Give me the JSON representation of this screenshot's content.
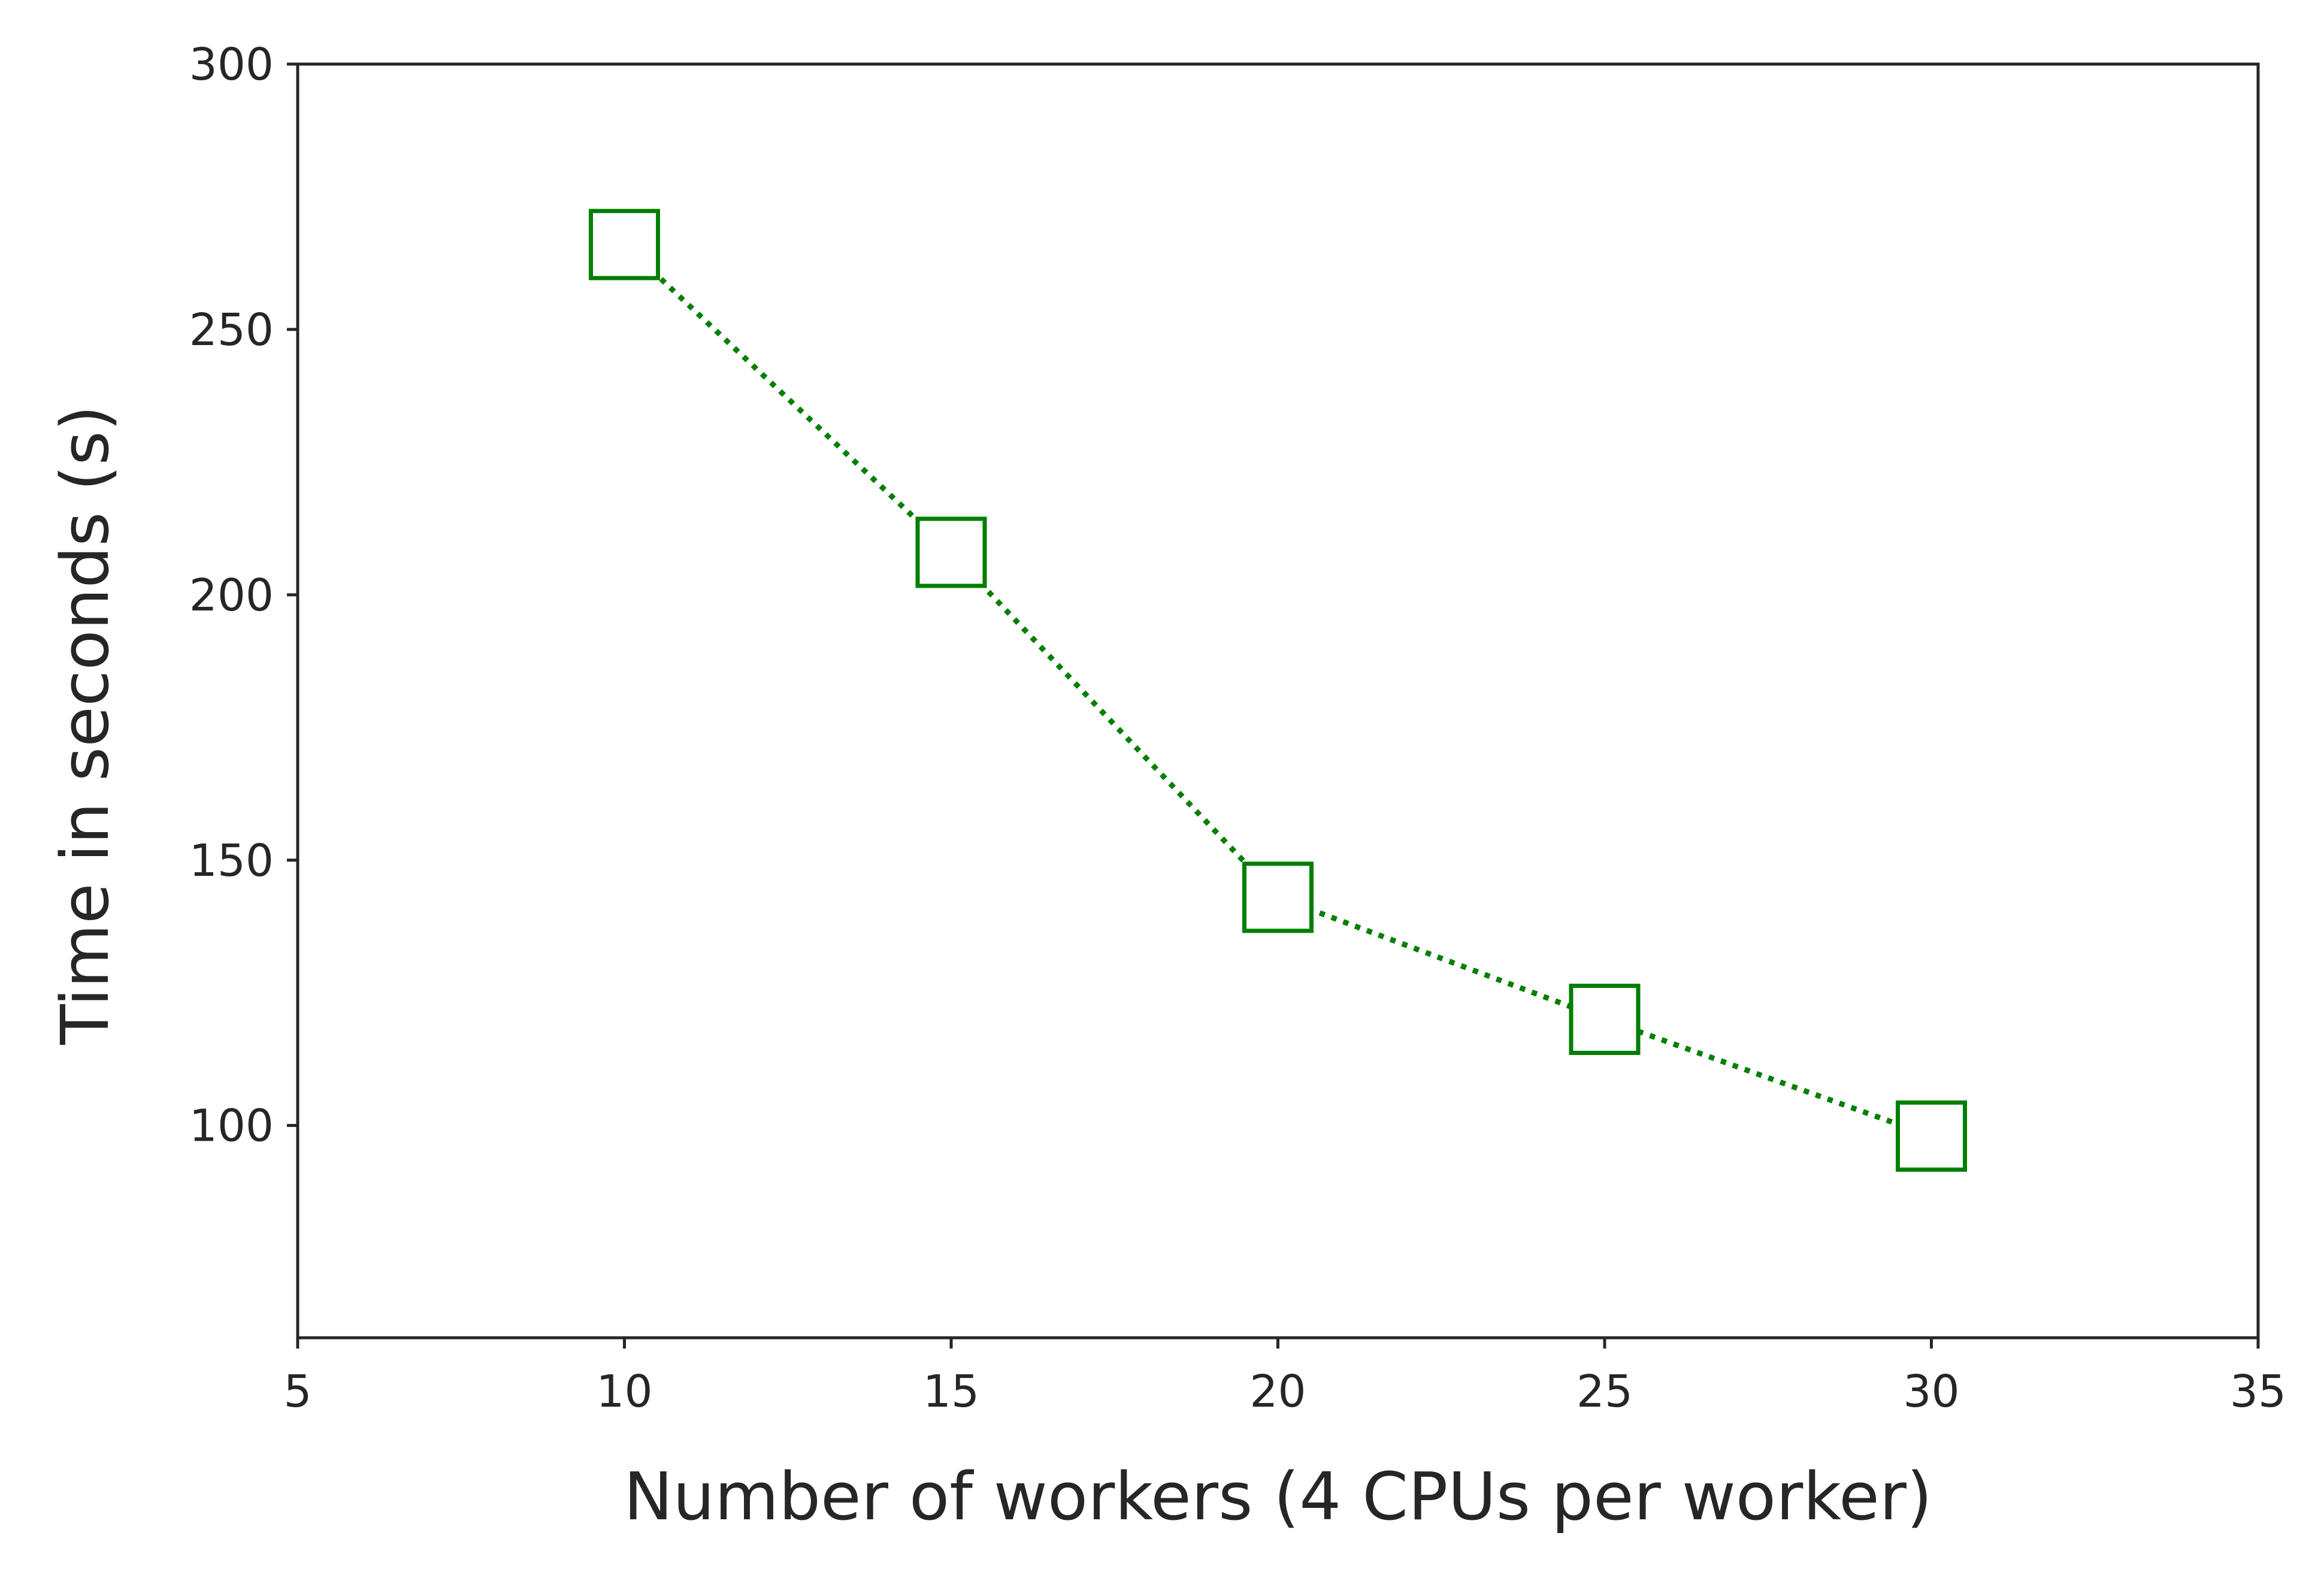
{
  "chart_data": {
    "type": "line",
    "title": "",
    "xlabel": "Number of workers (4 CPUs per worker)",
    "ylabel": "Time in seconds (s)",
    "xlim": [
      5,
      35
    ],
    "ylim": [
      60,
      300
    ],
    "xticks": [
      "5",
      "10",
      "15",
      "20",
      "25",
      "30",
      "35"
    ],
    "yticks": [
      "100",
      "150",
      "200",
      "250",
      "300"
    ],
    "grid": false,
    "legend": null,
    "series": [
      {
        "x": [
          10,
          15,
          20,
          25,
          30
        ],
        "y": [
          266,
          208,
          143,
          120,
          98
        ],
        "color": "#007f00",
        "line_style": "dotted",
        "marker": "square-open"
      }
    ]
  }
}
